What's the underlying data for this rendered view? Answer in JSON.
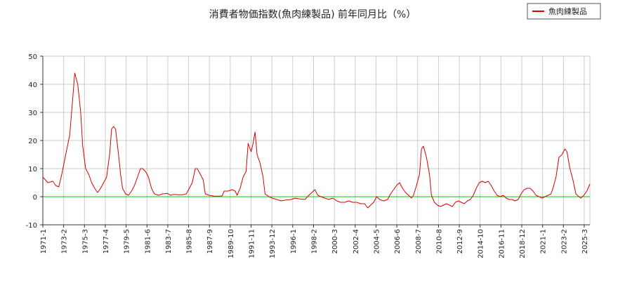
{
  "chart_data": {
    "type": "line",
    "title": "消費者物価指数(魚肉練製品) 前年同月比（%）",
    "xlabel": "",
    "ylabel": "",
    "ylim": [
      -10,
      50
    ],
    "yticks": [
      -10,
      0,
      10,
      20,
      30,
      40,
      50
    ],
    "grid": true,
    "legend_position": "top-right",
    "x_tick_labels": [
      "1971-1",
      "1973-2",
      "1975-3",
      "1977-4",
      "1979-5",
      "1981-6",
      "1983-7",
      "1985-8",
      "1987-9",
      "1989-10",
      "1991-11",
      "1993-12",
      "1996-1",
      "1998-2",
      "2000-3",
      "2002-4",
      "2004-5",
      "2006-6",
      "2008-7",
      "2010-8",
      "2012-9",
      "2014-10",
      "2016-11",
      "2018-12",
      "2021-1",
      "2023-2",
      "2025-3"
    ],
    "reference_line": {
      "y": 0,
      "color": "#00cc00"
    },
    "series": [
      {
        "name": "魚肉練製品",
        "color": "#dd0000",
        "points": [
          [
            1971.0,
            7
          ],
          [
            1971.5,
            5
          ],
          [
            1972.0,
            5.5
          ],
          [
            1972.3,
            4
          ],
          [
            1972.6,
            3.5
          ],
          [
            1972.9,
            8
          ],
          [
            1973.3,
            15
          ],
          [
            1973.7,
            22
          ],
          [
            1974.0,
            35
          ],
          [
            1974.2,
            44
          ],
          [
            1974.5,
            40
          ],
          [
            1974.8,
            30
          ],
          [
            1975.0,
            18
          ],
          [
            1975.3,
            10
          ],
          [
            1975.6,
            8
          ],
          [
            1975.9,
            5
          ],
          [
            1976.2,
            3
          ],
          [
            1976.5,
            1.5
          ],
          [
            1976.8,
            3
          ],
          [
            1977.1,
            5
          ],
          [
            1977.4,
            7
          ],
          [
            1977.7,
            15
          ],
          [
            1977.9,
            24
          ],
          [
            1978.1,
            25
          ],
          [
            1978.3,
            24
          ],
          [
            1978.6,
            15
          ],
          [
            1978.8,
            8
          ],
          [
            1979.0,
            3
          ],
          [
            1979.3,
            1
          ],
          [
            1979.6,
            0.5
          ],
          [
            1979.9,
            2
          ],
          [
            1980.2,
            4
          ],
          [
            1980.5,
            7
          ],
          [
            1980.8,
            10
          ],
          [
            1981.0,
            10
          ],
          [
            1981.3,
            9
          ],
          [
            1981.6,
            7
          ],
          [
            1981.9,
            3
          ],
          [
            1982.2,
            1
          ],
          [
            1982.6,
            0.5
          ],
          [
            1983.0,
            1
          ],
          [
            1983.5,
            1.2
          ],
          [
            1983.8,
            0.5
          ],
          [
            1984.1,
            0.8
          ],
          [
            1984.6,
            0.7
          ],
          [
            1985.0,
            0.7
          ],
          [
            1985.4,
            1
          ],
          [
            1985.7,
            3
          ],
          [
            1986.0,
            5
          ],
          [
            1986.3,
            10
          ],
          [
            1986.5,
            10
          ],
          [
            1986.8,
            8
          ],
          [
            1987.1,
            6
          ],
          [
            1987.3,
            1
          ],
          [
            1987.7,
            0.5
          ],
          [
            1988.2,
            0.2
          ],
          [
            1988.7,
            0.2
          ],
          [
            1989.0,
            0.3
          ],
          [
            1989.2,
            2
          ],
          [
            1989.6,
            2
          ],
          [
            1990.0,
            2.5
          ],
          [
            1990.3,
            2
          ],
          [
            1990.5,
            0.5
          ],
          [
            1990.8,
            3
          ],
          [
            1991.1,
            7
          ],
          [
            1991.4,
            9
          ],
          [
            1991.6,
            19
          ],
          [
            1991.9,
            16
          ],
          [
            1992.1,
            19
          ],
          [
            1992.3,
            23
          ],
          [
            1992.5,
            15
          ],
          [
            1992.8,
            12
          ],
          [
            1993.1,
            7
          ],
          [
            1993.3,
            1
          ],
          [
            1993.7,
            0
          ],
          [
            1994.0,
            -0.5
          ],
          [
            1994.5,
            -1
          ],
          [
            1994.9,
            -1.5
          ],
          [
            1995.4,
            -1.2
          ],
          [
            1995.9,
            -1
          ],
          [
            1996.3,
            -0.5
          ],
          [
            1996.8,
            -0.8
          ],
          [
            1997.3,
            -1
          ],
          [
            1997.7,
            0.5
          ],
          [
            1998.0,
            1.5
          ],
          [
            1998.3,
            2.5
          ],
          [
            1998.6,
            0.5
          ],
          [
            1998.9,
            0
          ],
          [
            1999.3,
            -0.5
          ],
          [
            1999.7,
            -1
          ],
          [
            2000.1,
            -0.5
          ],
          [
            2000.5,
            -1.5
          ],
          [
            2000.9,
            -2
          ],
          [
            2001.3,
            -2
          ],
          [
            2001.7,
            -1.5
          ],
          [
            2002.1,
            -2
          ],
          [
            2002.5,
            -2
          ],
          [
            2002.9,
            -2.5
          ],
          [
            2003.3,
            -2.5
          ],
          [
            2003.6,
            -4
          ],
          [
            2003.9,
            -3
          ],
          [
            2004.2,
            -2
          ],
          [
            2004.5,
            0
          ],
          [
            2004.8,
            -1
          ],
          [
            2005.2,
            -1.5
          ],
          [
            2005.6,
            -1
          ],
          [
            2005.9,
            1
          ],
          [
            2006.2,
            2.5
          ],
          [
            2006.5,
            4
          ],
          [
            2006.8,
            5
          ],
          [
            2007.1,
            3
          ],
          [
            2007.4,
            1.5
          ],
          [
            2007.7,
            0.5
          ],
          [
            2008.0,
            -0.5
          ],
          [
            2008.2,
            0.5
          ],
          [
            2008.5,
            4
          ],
          [
            2008.8,
            8
          ],
          [
            2009.0,
            17
          ],
          [
            2009.2,
            18
          ],
          [
            2009.5,
            14
          ],
          [
            2009.8,
            8
          ],
          [
            2010.0,
            0.5
          ],
          [
            2010.3,
            -2
          ],
          [
            2010.6,
            -3
          ],
          [
            2010.9,
            -3.5
          ],
          [
            2011.2,
            -3
          ],
          [
            2011.5,
            -2.5
          ],
          [
            2011.8,
            -3
          ],
          [
            2012.1,
            -3.5
          ],
          [
            2012.4,
            -2
          ],
          [
            2012.7,
            -1.5
          ],
          [
            2013.0,
            -2
          ],
          [
            2013.3,
            -2.5
          ],
          [
            2013.6,
            -1.5
          ],
          [
            2013.9,
            -1
          ],
          [
            2014.2,
            0.5
          ],
          [
            2014.5,
            3
          ],
          [
            2014.8,
            5
          ],
          [
            2015.1,
            5.5
          ],
          [
            2015.4,
            5
          ],
          [
            2015.7,
            5.5
          ],
          [
            2016.0,
            4
          ],
          [
            2016.3,
            2
          ],
          [
            2016.6,
            0.5
          ],
          [
            2016.9,
            0
          ],
          [
            2017.2,
            0.5
          ],
          [
            2017.5,
            -0.5
          ],
          [
            2017.8,
            -1
          ],
          [
            2018.1,
            -1
          ],
          [
            2018.4,
            -1.5
          ],
          [
            2018.7,
            -1
          ],
          [
            2019.0,
            1
          ],
          [
            2019.3,
            2.5
          ],
          [
            2019.6,
            3
          ],
          [
            2019.9,
            3
          ],
          [
            2020.2,
            2
          ],
          [
            2020.5,
            0.5
          ],
          [
            2020.8,
            0
          ],
          [
            2021.1,
            -0.5
          ],
          [
            2021.4,
            0
          ],
          [
            2021.7,
            0.5
          ],
          [
            2022.0,
            1
          ],
          [
            2022.2,
            3
          ],
          [
            2022.5,
            7
          ],
          [
            2022.8,
            14
          ],
          [
            2023.1,
            15
          ],
          [
            2023.4,
            17
          ],
          [
            2023.6,
            16
          ],
          [
            2023.9,
            10
          ],
          [
            2024.2,
            6
          ],
          [
            2024.5,
            1
          ],
          [
            2024.8,
            0
          ],
          [
            2025.0,
            -0.5
          ],
          [
            2025.3,
            0.5
          ],
          [
            2025.6,
            2
          ],
          [
            2025.9,
            4.5
          ]
        ]
      }
    ]
  }
}
